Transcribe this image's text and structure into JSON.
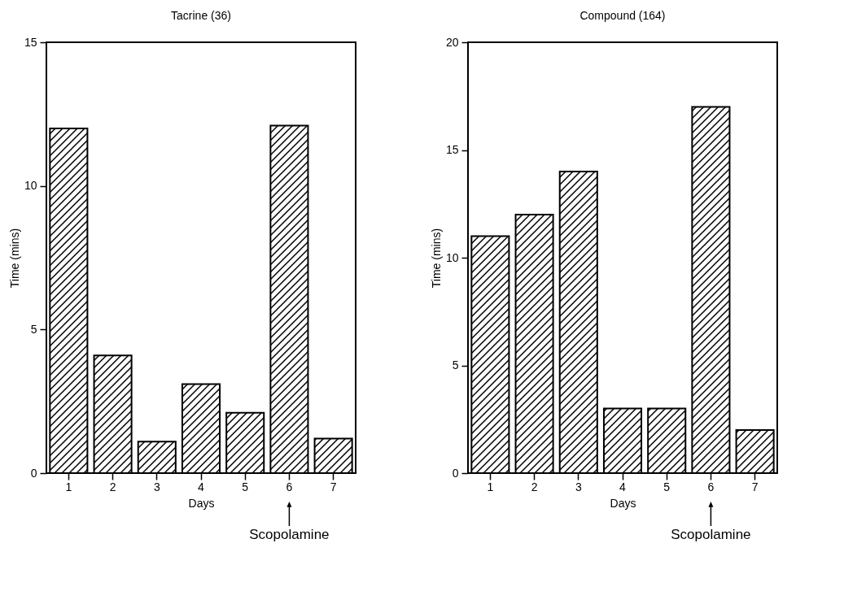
{
  "chart_data": [
    {
      "type": "bar",
      "title": "Tacrine (36)",
      "xlabel": "Days",
      "ylabel": "Time (mins)",
      "categories": [
        "1",
        "2",
        "3",
        "4",
        "5",
        "6",
        "7"
      ],
      "values": [
        12,
        4.1,
        1.1,
        3.1,
        2.1,
        12.1,
        1.2
      ],
      "color": "#000000",
      "ylim": [
        0,
        15
      ],
      "yticks": [
        0,
        5,
        10,
        15
      ],
      "annotations": [
        "Scopolamine"
      ]
    },
    {
      "type": "bar",
      "title": "Compound (164)",
      "xlabel": "Days",
      "ylabel": "Time (mins)",
      "categories": [
        "1",
        "2",
        "3",
        "4",
        "5",
        "6",
        "7"
      ],
      "values": [
        11,
        12,
        14,
        3,
        3,
        17,
        2
      ],
      "color": "#000000",
      "ylim": [
        0,
        20
      ],
      "yticks": [
        0,
        5,
        10,
        15,
        20
      ],
      "annotations": [
        "Scopolamine"
      ]
    }
  ]
}
